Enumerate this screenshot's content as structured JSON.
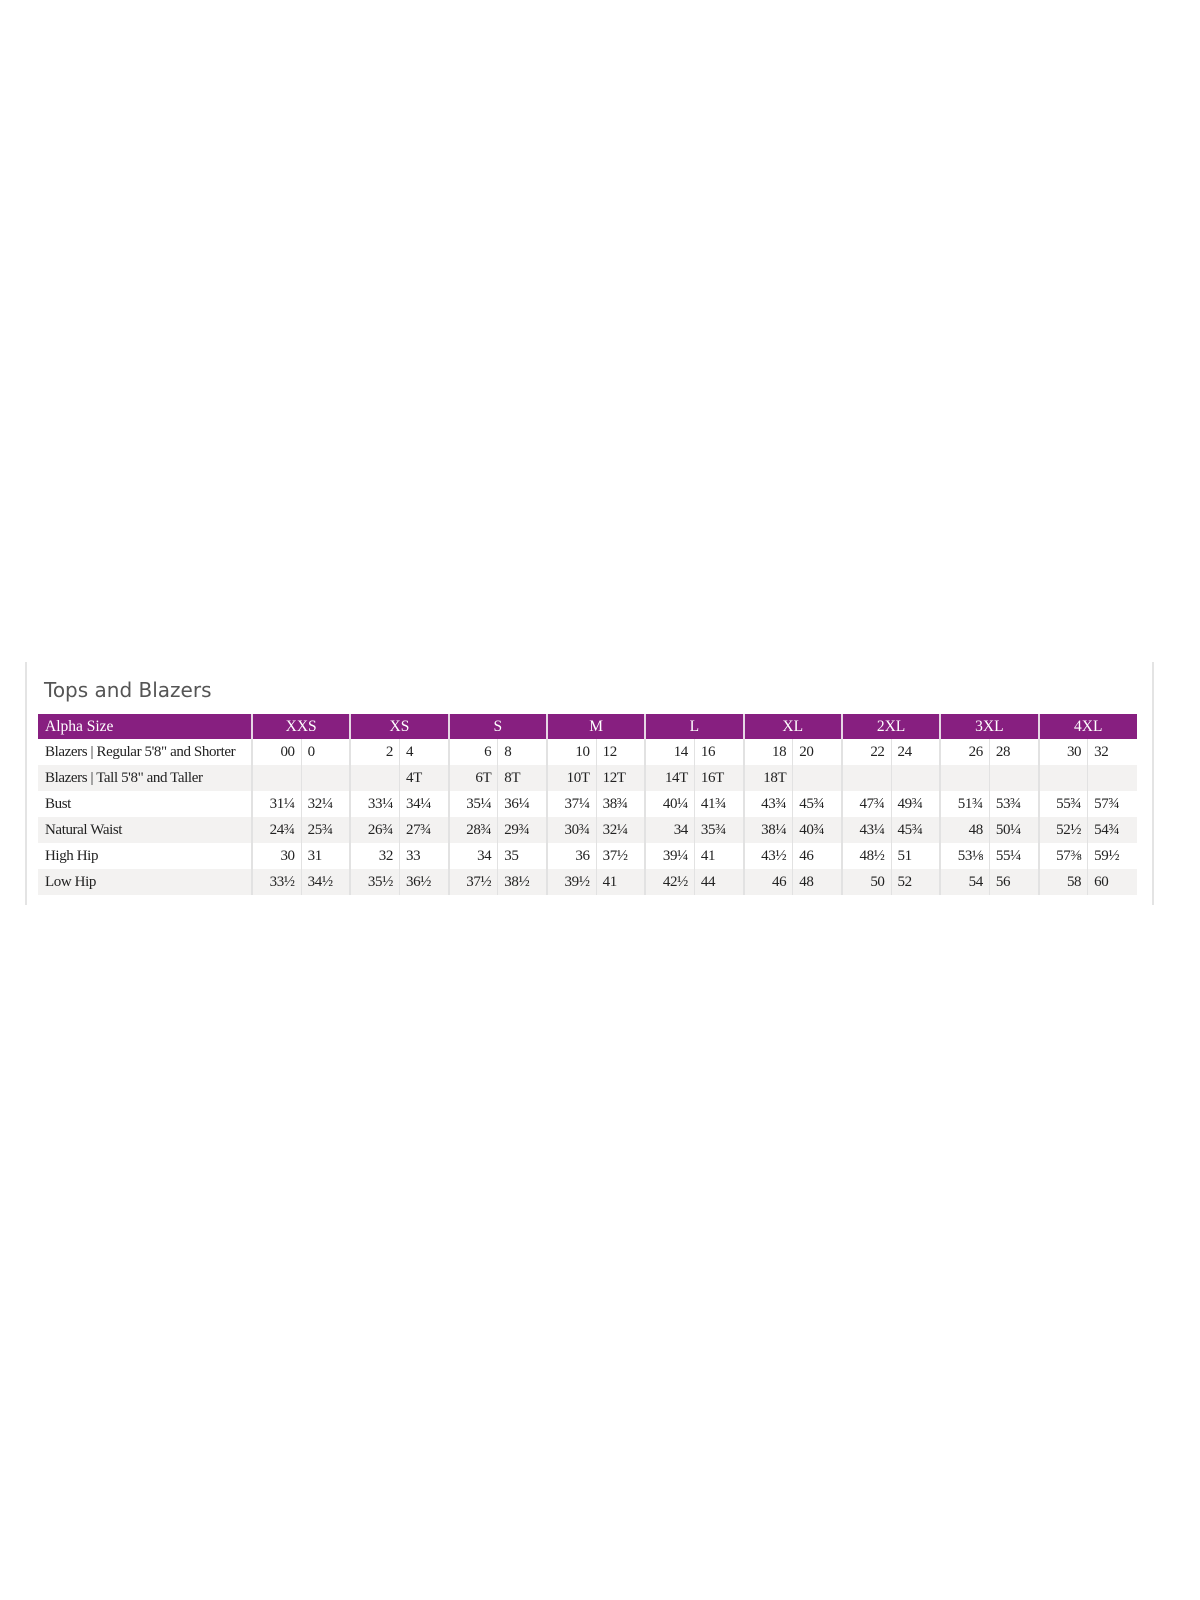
{
  "title": "Tops and Blazers",
  "header_color": "#871f80",
  "header": {
    "label": "Alpha Size",
    "sizes": [
      "XXS",
      "XS",
      "S",
      "M",
      "L",
      "XL",
      "2XL",
      "3XL",
      "4XL"
    ]
  },
  "rows": [
    {
      "label": "Blazers | Regular 5'8\" and Shorter",
      "values": [
        "00",
        "0",
        "2",
        "4",
        "6",
        "8",
        "10",
        "12",
        "14",
        "16",
        "18",
        "20",
        "22",
        "24",
        "26",
        "28",
        "30",
        "32"
      ]
    },
    {
      "label": "Blazers | Tall 5'8\" and Taller",
      "values": [
        "",
        "",
        "",
        "4T",
        "6T",
        "8T",
        "10T",
        "12T",
        "14T",
        "16T",
        "18T",
        "",
        "",
        "",
        "",
        "",
        "",
        ""
      ]
    },
    {
      "label": "Bust",
      "values": [
        "31¼",
        "32¼",
        "33¼",
        "34¼",
        "35¼",
        "36¼",
        "37¼",
        "38¾",
        "40¼",
        "41¾",
        "43¾",
        "45¾",
        "47¾",
        "49¾",
        "51¾",
        "53¾",
        "55¾",
        "57¾"
      ]
    },
    {
      "label": "Natural Waist",
      "values": [
        "24¾",
        "25¾",
        "26¾",
        "27¾",
        "28¾",
        "29¾",
        "30¾",
        "32¼",
        "34",
        "35¾",
        "38¼",
        "40¾",
        "43¼",
        "45¾",
        "48",
        "50¼",
        "52½",
        "54¾"
      ]
    },
    {
      "label": "High Hip",
      "values": [
        "30",
        "31",
        "32",
        "33",
        "34",
        "35",
        "36",
        "37½",
        "39¼",
        "41",
        "43½",
        "46",
        "48½",
        "51",
        "53⅛",
        "55¼",
        "57⅜",
        "59½"
      ]
    },
    {
      "label": "Low Hip",
      "values": [
        "33½",
        "34½",
        "35½",
        "36½",
        "37½",
        "38½",
        "39½",
        "41",
        "42½",
        "44",
        "46",
        "48",
        "50",
        "52",
        "54",
        "56",
        "58",
        "60"
      ]
    }
  ]
}
